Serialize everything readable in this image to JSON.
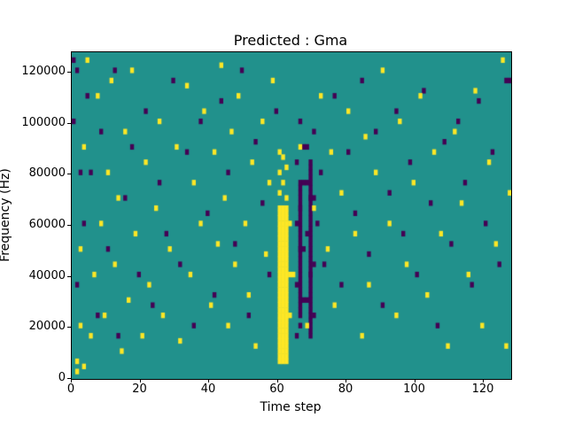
{
  "figure": {
    "title": "Predicted : Gma"
  },
  "chart_data": {
    "type": "heatmap",
    "title": "Predicted : Gma",
    "xlabel": "Time step",
    "ylabel": "Frequency (Hz)",
    "xlim": [
      0,
      128
    ],
    "ylim": [
      0,
      128000
    ],
    "xticks": [
      0,
      20,
      40,
      60,
      80,
      100,
      120
    ],
    "yticks": [
      0,
      20000,
      40000,
      60000,
      80000,
      100000,
      120000
    ],
    "n_time_bins": 128,
    "n_freq_bins": 64,
    "freq_bin_hz": 2000,
    "grid": false,
    "legend": "none",
    "colors": {
      "background": "#21918c",
      "high": "#fde725",
      "low": "#440154",
      "frame": "#000000"
    },
    "yellow_bands": [
      {
        "x0": 60,
        "x1": 62,
        "b0": 3,
        "b1": 33
      }
    ],
    "purple_bands": [
      {
        "x0": 66,
        "x1": 66,
        "b0": 12,
        "b1": 38
      },
      {
        "x0": 69,
        "x1": 69,
        "b0": 8,
        "b1": 42
      }
    ],
    "yellow_cells": [
      [
        1,
        3
      ],
      [
        1,
        1
      ],
      [
        2,
        10
      ],
      [
        2,
        25
      ],
      [
        3,
        45
      ],
      [
        3,
        2
      ],
      [
        4,
        62
      ],
      [
        5,
        8
      ],
      [
        6,
        20
      ],
      [
        7,
        55
      ],
      [
        8,
        30
      ],
      [
        9,
        12
      ],
      [
        10,
        40
      ],
      [
        11,
        58
      ],
      [
        12,
        22
      ],
      [
        13,
        35
      ],
      [
        14,
        5
      ],
      [
        15,
        48
      ],
      [
        16,
        15
      ],
      [
        17,
        60
      ],
      [
        18,
        28
      ],
      [
        20,
        8
      ],
      [
        21,
        42
      ],
      [
        22,
        18
      ],
      [
        24,
        33
      ],
      [
        25,
        50
      ],
      [
        26,
        12
      ],
      [
        28,
        25
      ],
      [
        30,
        45
      ],
      [
        31,
        7
      ],
      [
        33,
        57
      ],
      [
        34,
        20
      ],
      [
        35,
        38
      ],
      [
        37,
        30
      ],
      [
        38,
        52
      ],
      [
        40,
        14
      ],
      [
        41,
        44
      ],
      [
        42,
        26
      ],
      [
        43,
        61
      ],
      [
        44,
        35
      ],
      [
        45,
        10
      ],
      [
        46,
        48
      ],
      [
        47,
        22
      ],
      [
        48,
        55
      ],
      [
        50,
        30
      ],
      [
        51,
        16
      ],
      [
        52,
        42
      ],
      [
        53,
        6
      ],
      [
        55,
        50
      ],
      [
        56,
        24
      ],
      [
        57,
        38
      ],
      [
        58,
        58
      ],
      [
        60,
        36
      ],
      [
        61,
        38
      ],
      [
        60,
        40
      ],
      [
        62,
        35
      ],
      [
        61,
        43
      ],
      [
        62,
        41
      ],
      [
        60,
        44
      ],
      [
        63,
        30
      ],
      [
        63,
        12
      ],
      [
        63,
        20
      ],
      [
        64,
        20
      ],
      [
        66,
        45
      ],
      [
        68,
        10
      ],
      [
        70,
        33
      ],
      [
        72,
        55
      ],
      [
        74,
        25
      ],
      [
        75,
        44
      ],
      [
        76,
        14
      ],
      [
        78,
        36
      ],
      [
        80,
        52
      ],
      [
        82,
        28
      ],
      [
        84,
        8
      ],
      [
        85,
        47
      ],
      [
        86,
        18
      ],
      [
        88,
        40
      ],
      [
        90,
        60
      ],
      [
        92,
        30
      ],
      [
        94,
        12
      ],
      [
        95,
        50
      ],
      [
        97,
        22
      ],
      [
        99,
        38
      ],
      [
        101,
        55
      ],
      [
        103,
        16
      ],
      [
        105,
        44
      ],
      [
        107,
        28
      ],
      [
        109,
        6
      ],
      [
        111,
        48
      ],
      [
        113,
        34
      ],
      [
        115,
        20
      ],
      [
        117,
        56
      ],
      [
        119,
        10
      ],
      [
        121,
        42
      ],
      [
        123,
        26
      ],
      [
        125,
        62
      ],
      [
        126,
        6
      ],
      [
        127,
        36
      ]
    ],
    "purple_cells": [
      [
        0,
        50
      ],
      [
        0,
        62
      ],
      [
        1,
        18
      ],
      [
        1,
        60
      ],
      [
        2,
        40
      ],
      [
        3,
        30
      ],
      [
        4,
        55
      ],
      [
        5,
        40
      ],
      [
        7,
        12
      ],
      [
        8,
        48
      ],
      [
        10,
        25
      ],
      [
        12,
        60
      ],
      [
        13,
        8
      ],
      [
        15,
        35
      ],
      [
        17,
        45
      ],
      [
        19,
        20
      ],
      [
        21,
        52
      ],
      [
        23,
        14
      ],
      [
        25,
        38
      ],
      [
        27,
        28
      ],
      [
        29,
        58
      ],
      [
        31,
        22
      ],
      [
        33,
        44
      ],
      [
        35,
        10
      ],
      [
        37,
        50
      ],
      [
        39,
        32
      ],
      [
        41,
        16
      ],
      [
        43,
        54
      ],
      [
        45,
        40
      ],
      [
        47,
        26
      ],
      [
        49,
        60
      ],
      [
        51,
        12
      ],
      [
        53,
        46
      ],
      [
        55,
        34
      ],
      [
        57,
        20
      ],
      [
        59,
        52
      ],
      [
        65,
        30
      ],
      [
        65,
        42
      ],
      [
        65,
        8
      ],
      [
        65,
        18
      ],
      [
        66,
        33
      ],
      [
        66,
        10
      ],
      [
        66,
        25
      ],
      [
        66,
        50
      ],
      [
        67,
        15
      ],
      [
        67,
        38
      ],
      [
        67,
        25
      ],
      [
        67,
        45
      ],
      [
        68,
        28
      ],
      [
        68,
        45
      ],
      [
        68,
        15
      ],
      [
        68,
        38
      ],
      [
        69,
        20
      ],
      [
        69,
        35
      ],
      [
        70,
        48
      ],
      [
        70,
        12
      ],
      [
        70,
        35
      ],
      [
        70,
        22
      ],
      [
        71,
        30
      ],
      [
        72,
        40
      ],
      [
        73,
        22
      ],
      [
        76,
        55
      ],
      [
        78,
        18
      ],
      [
        80,
        44
      ],
      [
        82,
        32
      ],
      [
        84,
        58
      ],
      [
        86,
        24
      ],
      [
        88,
        48
      ],
      [
        90,
        14
      ],
      [
        92,
        36
      ],
      [
        94,
        52
      ],
      [
        96,
        28
      ],
      [
        98,
        42
      ],
      [
        100,
        20
      ],
      [
        102,
        56
      ],
      [
        104,
        34
      ],
      [
        106,
        10
      ],
      [
        108,
        46
      ],
      [
        110,
        26
      ],
      [
        112,
        50
      ],
      [
        114,
        38
      ],
      [
        116,
        18
      ],
      [
        118,
        54
      ],
      [
        120,
        30
      ],
      [
        122,
        44
      ],
      [
        124,
        22
      ],
      [
        126,
        58
      ],
      [
        127,
        58
      ]
    ]
  }
}
